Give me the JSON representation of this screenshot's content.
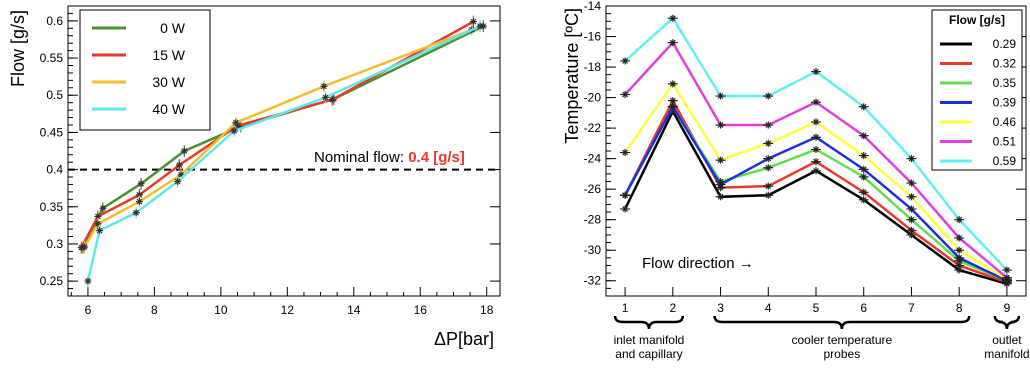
{
  "chart_data": [
    {
      "type": "line",
      "xlabel": "ΔP[bar]",
      "ylabel": "Flow [g/s]",
      "xlim": [
        5.4,
        18.4
      ],
      "ylim": [
        0.23,
        0.62
      ],
      "x_ticks": [
        "6",
        "8",
        "10",
        "12",
        "14",
        "16",
        "18"
      ],
      "y_ticks": [
        "0.25",
        "0.3",
        "0.35",
        "0.4",
        "0.45",
        "0.5",
        "0.55",
        "0.6"
      ],
      "legend_position": "top-left",
      "reference_line": {
        "y": 0.4,
        "style": "dashed"
      },
      "annotation": {
        "text": "Nominal flow: ",
        "value": "0.4 [g/s]"
      },
      "series": [
        {
          "name": "0 W",
          "color": "#4a8f30",
          "x": [
            5.85,
            6.45,
            7.6,
            8.9,
            10.6,
            13.4,
            17.9
          ],
          "y": [
            0.295,
            0.348,
            0.381,
            0.425,
            0.458,
            0.495,
            0.593
          ]
        },
        {
          "name": "15 W",
          "color": "#e8392a",
          "x": [
            5.8,
            6.3,
            7.55,
            8.75,
            10.5,
            13.35,
            17.6
          ],
          "y": [
            0.295,
            0.337,
            0.366,
            0.406,
            0.459,
            0.494,
            0.599
          ]
        },
        {
          "name": "30 W",
          "color": "#f5bd2c",
          "x": [
            5.9,
            6.3,
            7.55,
            8.8,
            10.45,
            13.1,
            17.55
          ],
          "y": [
            0.296,
            0.327,
            0.357,
            0.393,
            0.463,
            0.512,
            0.588
          ]
        },
        {
          "name": "40 W",
          "color": "#5ee8ee",
          "x": [
            6.0,
            6.35,
            7.45,
            8.7,
            10.4,
            13.15,
            17.8
          ],
          "y": [
            0.25,
            0.318,
            0.342,
            0.384,
            0.452,
            0.497,
            0.593
          ]
        }
      ]
    },
    {
      "type": "line",
      "xlabel": "",
      "ylabel": "Temperature [ºC]",
      "xlim": [
        0.6,
        9.4
      ],
      "ylim": [
        -33,
        -14
      ],
      "x_ticks": [
        "1",
        "2",
        "3",
        "4",
        "5",
        "6",
        "7",
        "8",
        "9"
      ],
      "y_ticks": [
        "-32",
        "-30",
        "-28",
        "-26",
        "-24",
        "-22",
        "-20",
        "-18",
        "-16",
        "-14"
      ],
      "legend_title": "Flow [g/s]",
      "legend_position": "top-right",
      "annotation": "Flow direction →",
      "x_groups": [
        {
          "text": "inlet manifold and capillary",
          "lines": [
            "inlet manifold",
            "and capillary"
          ],
          "from": 1,
          "to": 2
        },
        {
          "text": "cooler temperature probes",
          "lines": [
            "cooler temperature",
            "probes"
          ],
          "from": 3,
          "to": 8
        },
        {
          "text": "outlet manifold",
          "lines": [
            "outlet",
            "manifold"
          ],
          "from": 9,
          "to": 9
        }
      ],
      "x": [
        1,
        2,
        3,
        4,
        5,
        6,
        7,
        8,
        9
      ],
      "series": [
        {
          "name": "0.29",
          "color": "#000000",
          "values": [
            -27.3,
            -20.9,
            -26.5,
            -26.4,
            -24.8,
            -26.7,
            -29.0,
            -31.3,
            -32.2
          ]
        },
        {
          "name": "0.32",
          "color": "#e8392a",
          "values": [
            -26.4,
            -20.2,
            -25.9,
            -25.8,
            -24.2,
            -26.2,
            -28.7,
            -31.0,
            -32.1
          ]
        },
        {
          "name": "0.35",
          "color": "#5fe04a",
          "values": [
            -26.4,
            -20.6,
            -25.5,
            -24.6,
            -23.4,
            -25.2,
            -28.0,
            -30.7,
            -32.0
          ]
        },
        {
          "name": "0.39",
          "color": "#1a2fe0",
          "values": [
            -26.4,
            -20.6,
            -25.7,
            -24.0,
            -22.6,
            -24.7,
            -27.3,
            -30.5,
            -32.0
          ]
        },
        {
          "name": "0.46",
          "color": "#ffff3a",
          "values": [
            -23.6,
            -19.1,
            -24.1,
            -23.0,
            -21.6,
            -23.8,
            -26.5,
            -30.0,
            -31.9
          ]
        },
        {
          "name": "0.51",
          "color": "#e23ddf",
          "values": [
            -19.8,
            -16.4,
            -21.8,
            -21.8,
            -20.3,
            -22.5,
            -25.6,
            -29.2,
            -31.8
          ]
        },
        {
          "name": "0.59",
          "color": "#5ef0f3",
          "values": [
            -17.6,
            -14.8,
            -19.9,
            -19.9,
            -18.3,
            -20.6,
            -24.0,
            -28.0,
            -31.3
          ]
        }
      ]
    }
  ]
}
